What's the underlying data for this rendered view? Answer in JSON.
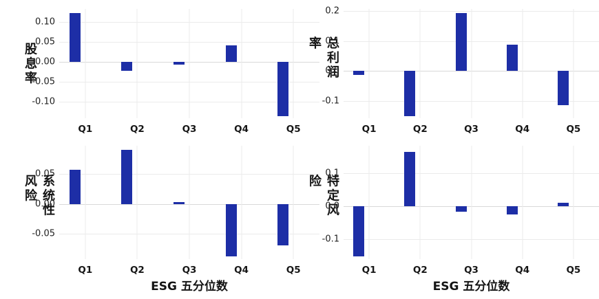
{
  "figure": {
    "background": "#ffffff",
    "bar_color": "#1d2ea6",
    "grid_color": "#ebebeb",
    "zero_line_color": "#d9d9d9",
    "text_color": "#1f1f1f",
    "x_axis_title": "ESG 五分位数"
  },
  "chart_data": [
    {
      "id": "dividend-yield",
      "type": "bar",
      "title": "",
      "ylabel": "股息率",
      "xlabel": "",
      "categories": [
        "Q1",
        "Q2",
        "Q3",
        "Q4",
        "Q5"
      ],
      "values": [
        0.123,
        -0.022,
        -0.007,
        0.042,
        -0.136
      ],
      "ylim": [
        -0.141,
        0.133
      ],
      "yticks": [
        {
          "v": 0.1,
          "label": "0.10"
        },
        {
          "v": 0.05,
          "label": "0.05"
        },
        {
          "v": 0.0,
          "label": "0.00"
        },
        {
          "v": -0.05,
          "label": "-0.05"
        },
        {
          "v": -0.1,
          "label": "-0.10"
        }
      ],
      "grid": true,
      "legend": "none"
    },
    {
      "id": "gross-profit-margin",
      "type": "bar",
      "title": "",
      "ylabel": "总利润率",
      "xlabel": "",
      "categories": [
        "Q1",
        "Q2",
        "Q3",
        "Q4",
        "Q5"
      ],
      "values": [
        -0.013,
        -0.15,
        0.193,
        0.087,
        -0.112
      ],
      "ylim": [
        -0.156,
        0.206
      ],
      "yticks": [
        {
          "v": 0.2,
          "label": "0.2"
        },
        {
          "v": 0.1,
          "label": "0.1"
        },
        {
          "v": 0.0,
          "label": "0.0"
        },
        {
          "v": -0.1,
          "label": "-0.1"
        }
      ],
      "grid": true,
      "legend": "none"
    },
    {
      "id": "systematic-risk",
      "type": "bar",
      "title": "",
      "ylabel": "系统性风险",
      "xlabel": "ESG 五分位数",
      "categories": [
        "Q1",
        "Q2",
        "Q3",
        "Q4",
        "Q5"
      ],
      "values": [
        0.057,
        0.09,
        0.003,
        -0.087,
        -0.069
      ],
      "ylim": [
        -0.092,
        0.097
      ],
      "yticks": [
        {
          "v": 0.05,
          "label": "0.05"
        },
        {
          "v": 0.0,
          "label": "0.00"
        },
        {
          "v": -0.05,
          "label": "-0.05"
        }
      ],
      "grid": true,
      "legend": "none"
    },
    {
      "id": "specific-risk",
      "type": "bar",
      "title": "",
      "ylabel": "特定风险",
      "xlabel": "ESG 五分位数",
      "categories": [
        "Q1",
        "Q2",
        "Q3",
        "Q4",
        "Q5"
      ],
      "values": [
        -0.154,
        0.167,
        -0.017,
        -0.026,
        0.01
      ],
      "ylim": [
        -0.162,
        0.185
      ],
      "yticks": [
        {
          "v": 0.1,
          "label": "0.1"
        },
        {
          "v": 0.0,
          "label": "0.0"
        },
        {
          "v": -0.1,
          "label": "-0.1"
        }
      ],
      "grid": true,
      "legend": "none"
    }
  ]
}
